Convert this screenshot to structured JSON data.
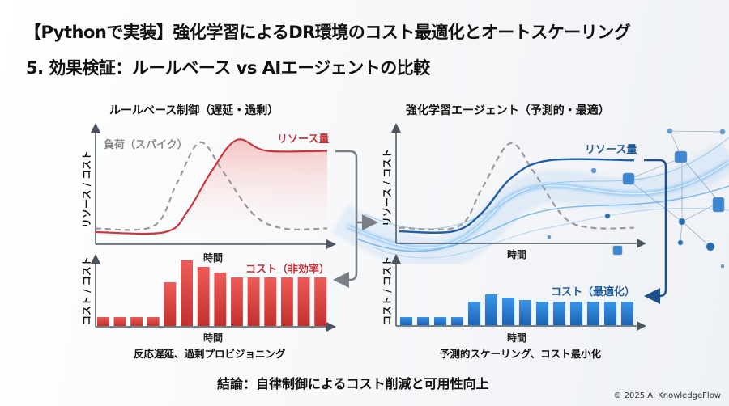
{
  "header": {
    "title": "【Pythonで実装】強化学習によるDR環境のコスト最適化とオートスケーリング",
    "subtitle": "5. 効果検証：ルールベース vs AIエージェントの比較"
  },
  "colors": {
    "rule_based": "#c9363c",
    "agent": "#1f6fc0",
    "load": "#9a9a9a",
    "accent_dark_blue": "#1d4f8a"
  },
  "panels": {
    "rule_based": {
      "title": "ルールベース制御（遅延・過剰）",
      "top_ylabel": "リソース / コスト",
      "top_xlabel": "時間",
      "load_label": "負荷（スパイク）",
      "resource_label": "リソース量",
      "bottom_ylabel": "コスト / コスト",
      "bottom_xlabel": "時間",
      "cost_label": "コスト（非効率）",
      "caption": "反応遅延、過剰プロビジョニング"
    },
    "agent": {
      "title": "強化学習エージェント（予測的・最適）",
      "top_ylabel": "リソース / コスト",
      "top_xlabel": "時間",
      "resource_label": "リソース量",
      "bottom_ylabel": "コスト / コスト",
      "bottom_xlabel": "時間",
      "cost_label": "コスト（最適化）",
      "caption": "予測的スケーリング、コスト最小化"
    }
  },
  "chart_data": [
    {
      "type": "line",
      "panel": "rule_based",
      "xlabel": "時間",
      "ylabel": "リソース / コスト",
      "xlim": [
        0,
        100
      ],
      "ylim": [
        0,
        100
      ],
      "series": [
        {
          "name": "リソース量",
          "style": "solid",
          "color": "#c9363c",
          "points": [
            [
              0,
              10
            ],
            [
              30,
              10
            ],
            [
              40,
              28
            ],
            [
              50,
              60
            ],
            [
              61,
              86
            ],
            [
              74,
              77
            ],
            [
              100,
              77
            ]
          ]
        },
        {
          "name": "負荷（スパイク）",
          "style": "dashed",
          "color": "#9a9a9a",
          "points": [
            [
              0,
              13
            ],
            [
              25,
              15
            ],
            [
              35,
              50
            ],
            [
              45,
              84
            ],
            [
              55,
              60
            ],
            [
              68,
              25
            ],
            [
              81,
              13
            ],
            [
              100,
              13
            ]
          ]
        }
      ]
    },
    {
      "type": "bar",
      "panel": "rule_based",
      "xlabel": "時間",
      "ylabel": "コスト / コスト",
      "series": [
        {
          "name": "コスト（非効率）",
          "color": "#d9443f",
          "values": [
            11,
            11,
            11,
            11,
            54,
            81,
            73,
            66,
            60,
            60,
            60,
            60,
            60,
            60
          ]
        }
      ]
    },
    {
      "type": "line",
      "panel": "agent",
      "xlabel": "時間",
      "ylabel": "リソース / コスト",
      "xlim": [
        0,
        100
      ],
      "ylim": [
        0,
        100
      ],
      "series": [
        {
          "name": "リソース量",
          "style": "solid",
          "color": "#1f5fa8",
          "points": [
            [
              0,
              10
            ],
            [
              23,
              10
            ],
            [
              35,
              25
            ],
            [
              48,
              55
            ],
            [
              64,
              69
            ],
            [
              100,
              69
            ]
          ]
        },
        {
          "style": "dashed",
          "color": "#9a9a9a",
          "points": [
            [
              0,
              13
            ],
            [
              25,
              14
            ],
            [
              35,
              45
            ],
            [
              47,
              83
            ],
            [
              57,
              60
            ],
            [
              70,
              22
            ],
            [
              82,
              13
            ],
            [
              100,
              13
            ]
          ]
        }
      ]
    },
    {
      "type": "bar",
      "panel": "agent",
      "xlabel": "時間",
      "ylabel": "コスト / コスト",
      "series": [
        {
          "name": "コスト（最適化）",
          "color": "#2b7fd0",
          "values": [
            10,
            10,
            10,
            10,
            29,
            38,
            34,
            31,
            29,
            29,
            29,
            29,
            29,
            29
          ]
        }
      ]
    }
  ],
  "footer": {
    "conclusion": "結論：自律制御によるコスト削減と可用性向上",
    "copyright": "© 2025 AI KnowledgeFlow"
  }
}
